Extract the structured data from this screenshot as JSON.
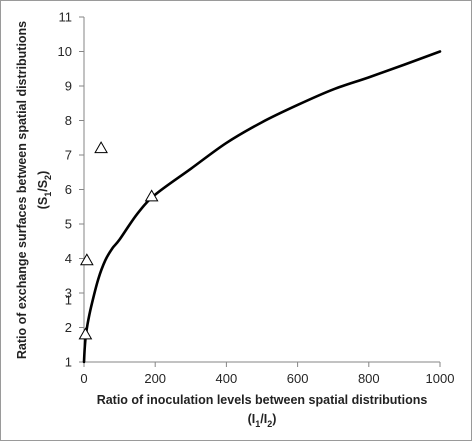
{
  "chart_data": {
    "type": "line",
    "title": "",
    "xlabel": {
      "line1": "Ratio of inoculation levels between spatial distributions",
      "line2_prefix": "(I",
      "line2_sub1": "1",
      "line2_mid": "/I",
      "line2_sub2": "2",
      "line2_suffix": ")"
    },
    "ylabel": {
      "line1": "Ratio of exchange surfaces between spatial distributions",
      "line2_prefix": "(S",
      "line2_sub1": "1",
      "line2_mid": "/S",
      "line2_sub2": "2",
      "line2_suffix": ")"
    },
    "xlim": [
      0,
      1000
    ],
    "ylim": [
      1,
      11
    ],
    "x_ticks": [
      0,
      200,
      400,
      600,
      800,
      1000
    ],
    "y_ticks": [
      1,
      2,
      3,
      4,
      5,
      6,
      7,
      8,
      9,
      10,
      11
    ],
    "extra_tick_label": {
      "text": "1",
      "y": 2.8
    },
    "grid": false,
    "series": [
      {
        "kind": "line",
        "color": "#000000",
        "x": [
          0,
          2,
          5,
          10,
          20,
          40,
          60,
          80,
          100,
          150,
          200,
          300,
          400,
          500,
          600,
          700,
          800,
          900,
          1000
        ],
        "y": [
          1,
          1.4,
          1.75,
          2.1,
          2.6,
          3.4,
          3.95,
          4.3,
          4.55,
          5.3,
          5.85,
          6.6,
          7.35,
          7.95,
          8.45,
          8.9,
          9.25,
          9.62,
          10
        ]
      },
      {
        "kind": "marker",
        "marker": "open-triangle",
        "x": [
          4,
          8,
          48,
          190
        ],
        "y": [
          1.8,
          3.95,
          7.2,
          5.8
        ]
      }
    ]
  }
}
